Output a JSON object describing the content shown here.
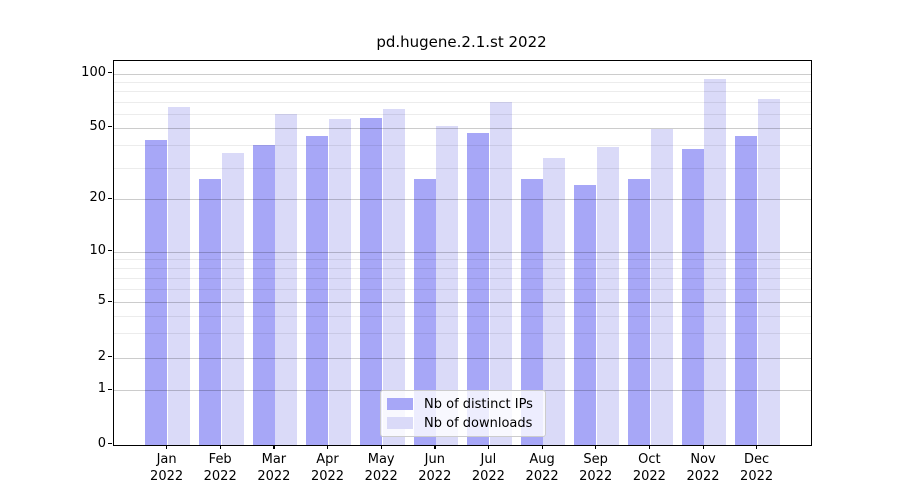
{
  "title": "pd.hugene.2.1.st 2022",
  "chart_data": {
    "type": "bar",
    "title": "pd.hugene.2.1.st 2022",
    "categories": [
      "Jan",
      "Feb",
      "Mar",
      "Apr",
      "May",
      "Jun",
      "Jul",
      "Aug",
      "Sep",
      "Oct",
      "Nov",
      "Dec"
    ],
    "x_tick_year": "2022",
    "series": [
      {
        "name": "Nb of distinct IPs",
        "color": "#a7a7f7",
        "values": [
          43,
          26,
          40,
          45,
          57,
          26,
          47,
          26,
          24,
          26,
          38,
          45
        ]
      },
      {
        "name": "Nb of downloads",
        "color": "#dadaf8",
        "values": [
          65,
          36,
          60,
          56,
          64,
          51,
          70,
          34,
          39,
          49,
          93,
          72
        ]
      }
    ],
    "y_axis": {
      "scale": "log",
      "major_ticks": [
        0,
        1,
        2,
        5,
        10,
        20,
        50,
        100
      ],
      "minor_ticks": [
        3,
        4,
        6,
        7,
        8,
        9,
        30,
        40,
        60,
        70,
        80,
        90
      ],
      "ylim": [
        0,
        117
      ]
    },
    "grid": true,
    "legend_position": "bottom-center"
  },
  "colors": {
    "bar_distinct_ips": "#a7a7f7",
    "bar_downloads": "#dadaf8",
    "grid_major": "#cccccc",
    "grid_minor": "#ececec",
    "frame": "#000000",
    "text": "#000000",
    "legend_border": "#cccccc"
  }
}
